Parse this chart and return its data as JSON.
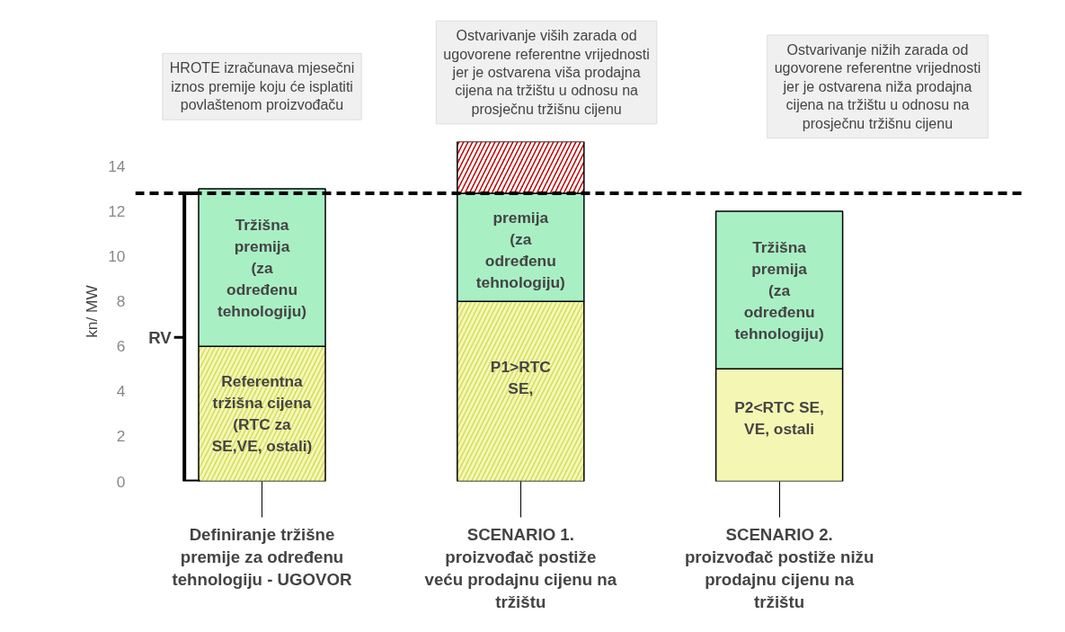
{
  "chart_data": {
    "type": "bar",
    "stacked": true,
    "ylabel": "kn/ MW",
    "categories": [
      "Definiranje tržišne\npremije za određenu\ntehnologiju - UGOVOR",
      "SCENARIO 1.\nproizvođač postiže\nveću prodajnu cijenu na\ntržištu",
      "SCENARIO 2.\nproizvođač postiže nižu\nprodajnu cijenu na\ntržištu"
    ],
    "series": [
      {
        "color": "#f4f7b4",
        "values": [
          6,
          8,
          5
        ]
      },
      {
        "color": "#a9efc4",
        "values": [
          7,
          4.8,
          7
        ]
      },
      {
        "color": "#c00000",
        "values": [
          null,
          2.3,
          null
        ]
      }
    ],
    "ylim": [
      0,
      15.1
    ],
    "yticks": [
      0,
      2,
      4,
      6,
      8,
      10,
      12,
      14
    ],
    "grid": false,
    "ref_lines": [
      {
        "axis": "y",
        "value": 12.8,
        "line_style": "dashed",
        "color": "#000000"
      }
    ],
    "annotations": [
      "HROTE izračunava mjesečni\niznos premije koju će isplatiti\npovlaštenom proizvođaču",
      "Ostvarivanje viših zarada od\nugovorene referentne vrijednosti\njer je ostvarena viša prodajna\ncijena na tržištu u odnosu na\nprosječnu tržišnu cijenu",
      "Ostvarivanje nižih zarada od\nugovorene referentne vrijednosti\njer je ostvarena niža prodajna\ncijena na tržištu u odnosu na\nprosječnu tržišnu cijenu",
      "Tržišna\npremija\n(za\nodređenu\ntehnologiju)",
      "Referentna\ntržišna cijena\n(RTC za\nSE,VE, ostali)",
      "premija\n(za\nodređenu\ntehnologiju)",
      "P1>RTC\nSE,",
      "Tržišna\npremija\n(za\nodređenu\ntehnologiju)",
      "P2<RTC SE,\nVE, ostali",
      "RV"
    ]
  }
}
